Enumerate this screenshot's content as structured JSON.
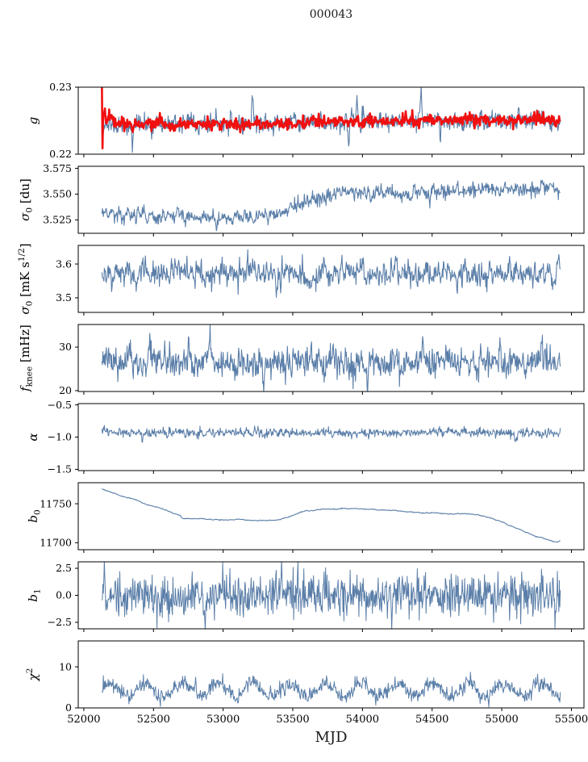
{
  "title": "000043",
  "x_axis": {
    "label": "MJD",
    "lim": [
      51960,
      55590
    ],
    "ticks": [
      {
        "v": 52000,
        "label": "52000"
      },
      {
        "v": 52500,
        "label": "52500"
      },
      {
        "v": 53000,
        "label": "53000"
      },
      {
        "v": 53500,
        "label": "53500"
      },
      {
        "v": 54000,
        "label": "54000"
      },
      {
        "v": 54500,
        "label": "54500"
      },
      {
        "v": 55000,
        "label": "55000"
      },
      {
        "v": 55500,
        "label": "55500"
      }
    ]
  },
  "data_xrange": [
    52130,
    55420
  ],
  "colors": {
    "line": "#5a7ea8",
    "overlay": "#f01010",
    "axis": "#000000",
    "text": "#000000",
    "background": "#ffffff"
  },
  "chart_data": [
    {
      "id": "g",
      "type": "line",
      "ylabel": [
        {
          "t": "g",
          "it": true
        }
      ],
      "ylim": [
        0.22,
        0.23
      ],
      "yticks": [
        {
          "v": 0.23,
          "label": "0.23"
        },
        {
          "v": 0.22,
          "label": "0.22"
        }
      ],
      "series": [
        {
          "name": "gain-raw",
          "color": "line",
          "lw": 1.1,
          "n": 950,
          "seed": 11,
          "ar": 0.35,
          "noise": 0.00058,
          "baseline": [
            [
              52130,
              0.2247
            ],
            [
              52200,
              0.2243
            ],
            [
              52500,
              0.2244
            ],
            [
              53000,
              0.2245
            ],
            [
              53500,
              0.2246
            ],
            [
              54000,
              0.2248
            ],
            [
              54300,
              0.2249
            ],
            [
              54700,
              0.2251
            ],
            [
              55000,
              0.2251
            ],
            [
              55250,
              0.2253
            ],
            [
              55420,
              0.2246
            ]
          ],
          "spikes": [
            {
              "x": 52350,
              "dy": -0.0028
            },
            {
              "x": 53210,
              "dy": 0.0046
            },
            {
              "x": 53900,
              "dy": -0.003
            },
            {
              "x": 53960,
              "dy": 0.0042
            },
            {
              "x": 54420,
              "dy": 0.0036
            },
            {
              "x": 54560,
              "dy": -0.0026
            },
            {
              "x": 55120,
              "dy": 0.0022
            }
          ]
        },
        {
          "name": "gain-smooth",
          "color": "overlay",
          "lw": 2.6,
          "n": 760,
          "seed": 22,
          "ar": 0.2,
          "noise": 0.0004,
          "baseline": [
            [
              52130,
              0.2297
            ],
            [
              52134,
              0.2199
            ],
            [
              52139,
              0.2262
            ],
            [
              52170,
              0.2254
            ],
            [
              52250,
              0.2247
            ],
            [
              52700,
              0.2244
            ],
            [
              53300,
              0.2245
            ],
            [
              53700,
              0.2248
            ],
            [
              54000,
              0.2249
            ],
            [
              54400,
              0.225
            ],
            [
              54700,
              0.2252
            ],
            [
              55000,
              0.2251
            ],
            [
              55250,
              0.2253
            ],
            [
              55420,
              0.2247
            ]
          ],
          "spikes": []
        }
      ]
    },
    {
      "id": "sigma0-du",
      "type": "line",
      "ylabel": [
        {
          "t": "σ",
          "it": true
        },
        {
          "t": "0",
          "sub": true
        },
        {
          "t": " [du]"
        }
      ],
      "ylim": [
        3.512,
        3.577
      ],
      "yticks": [
        {
          "v": 3.575,
          "label": "3.575"
        },
        {
          "v": 3.55,
          "label": "3.550"
        },
        {
          "v": 3.525,
          "label": "3.525"
        }
      ],
      "series": [
        {
          "name": "sigma0-du",
          "color": "line",
          "lw": 1.1,
          "n": 950,
          "seed": 33,
          "ar": 0.4,
          "noise": 0.0032,
          "baseline": [
            [
              52130,
              3.533
            ],
            [
              52250,
              3.53
            ],
            [
              52600,
              3.5285
            ],
            [
              53000,
              3.527
            ],
            [
              53250,
              3.528
            ],
            [
              53400,
              3.531
            ],
            [
              53550,
              3.539
            ],
            [
              53700,
              3.547
            ],
            [
              53850,
              3.551
            ],
            [
              54050,
              3.552
            ],
            [
              54250,
              3.55
            ],
            [
              54450,
              3.553
            ],
            [
              54650,
              3.552
            ],
            [
              54850,
              3.555
            ],
            [
              55050,
              3.553
            ],
            [
              55200,
              3.552
            ],
            [
              55330,
              3.559
            ],
            [
              55420,
              3.551
            ]
          ],
          "spikes": [
            {
              "x": 52950,
              "dy": -0.008
            },
            {
              "x": 53320,
              "dy": -0.009
            },
            {
              "x": 54060,
              "dy": -0.009
            },
            {
              "x": 54480,
              "dy": -0.008
            },
            {
              "x": 55290,
              "dy": 0.007
            }
          ]
        }
      ]
    },
    {
      "id": "sigma0-mks",
      "type": "line",
      "ylabel": [
        {
          "t": "σ",
          "it": true
        },
        {
          "t": "0",
          "sub": true
        },
        {
          "t": " [mK s"
        },
        {
          "t": "1/2",
          "sup": true
        },
        {
          "t": "]"
        }
      ],
      "ylim": [
        3.457,
        3.655
      ],
      "yticks": [
        {
          "v": 3.6,
          "label": "3.6"
        },
        {
          "v": 3.5,
          "label": "3.5"
        }
      ],
      "series": [
        {
          "name": "sigma0-mks",
          "color": "line",
          "lw": 1.1,
          "n": 950,
          "seed": 44,
          "ar": 0.5,
          "noise": 0.017,
          "baseline": [
            [
              52130,
              3.566
            ],
            [
              52600,
              3.5715
            ],
            [
              53000,
              3.569
            ],
            [
              53600,
              3.57
            ],
            [
              54100,
              3.5705
            ],
            [
              54600,
              3.5695
            ],
            [
              55100,
              3.5715
            ],
            [
              55420,
              3.565
            ]
          ],
          "spikes": [
            {
              "x": 52330,
              "dy": 0.035
            },
            {
              "x": 53380,
              "dy": -0.06
            },
            {
              "x": 53850,
              "dy": 0.062
            },
            {
              "x": 54680,
              "dy": -0.05
            },
            {
              "x": 55060,
              "dy": 0.04
            }
          ]
        }
      ]
    },
    {
      "id": "fknee",
      "type": "line",
      "ylabel": [
        {
          "t": "f",
          "it": true
        },
        {
          "t": "knee",
          "sub": true
        },
        {
          "t": " [mHz]"
        }
      ],
      "ylim": [
        19.8,
        35.2
      ],
      "yticks": [
        {
          "v": 30,
          "label": "30"
        },
        {
          "v": 20,
          "label": "20"
        }
      ],
      "series": [
        {
          "name": "fknee",
          "color": "line",
          "lw": 1.1,
          "n": 950,
          "seed": 55,
          "ar": 0.35,
          "noise": 1.55,
          "baseline": [
            [
              52130,
              26.2
            ],
            [
              52600,
              26.9
            ],
            [
              53100,
              26.3
            ],
            [
              53600,
              26.4
            ],
            [
              54100,
              25.9
            ],
            [
              54600,
              26.7
            ],
            [
              55100,
              26.6
            ],
            [
              55420,
              26.9
            ]
          ],
          "spikes": [
            {
              "x": 52470,
              "dy": 4.2
            },
            {
              "x": 52905,
              "dy": 7.5
            },
            {
              "x": 53290,
              "dy": -4.3
            },
            {
              "x": 53630,
              "dy": 4.0
            },
            {
              "x": 54035,
              "dy": -4.6
            },
            {
              "x": 54430,
              "dy": 4.0
            },
            {
              "x": 54985,
              "dy": 5.0
            },
            {
              "x": 55285,
              "dy": 4.4
            }
          ]
        }
      ]
    },
    {
      "id": "alpha",
      "type": "line",
      "ylabel": [
        {
          "t": "α",
          "it": true
        }
      ],
      "ylim": [
        -1.52,
        -0.48
      ],
      "yticks": [
        {
          "v": -0.5,
          "label": "−0.5"
        },
        {
          "v": -1.0,
          "label": "−1.0"
        },
        {
          "v": -1.5,
          "label": "−1.5"
        }
      ],
      "series": [
        {
          "name": "alpha",
          "color": "line",
          "lw": 1.0,
          "n": 950,
          "seed": 66,
          "ar": 0.35,
          "noise": 0.03,
          "baseline": [
            [
              52130,
              -0.928
            ],
            [
              55420,
              -0.932
            ]
          ],
          "spikes": [
            {
              "x": 52420,
              "dy": -0.1
            },
            {
              "x": 53250,
              "dy": 0.08
            },
            {
              "x": 53790,
              "dy": -0.09
            },
            {
              "x": 54620,
              "dy": 0.08
            },
            {
              "x": 55100,
              "dy": -0.08
            }
          ]
        }
      ]
    },
    {
      "id": "b0",
      "type": "line",
      "ylabel": [
        {
          "t": "b",
          "it": true
        },
        {
          "t": "0",
          "sub": true
        }
      ],
      "ylim": [
        11691,
        11777
      ],
      "yticks": [
        {
          "v": 11750,
          "label": "11750"
        },
        {
          "v": 11700,
          "label": "11700"
        }
      ],
      "series": [
        {
          "name": "b0",
          "color": "line",
          "lw": 1.1,
          "n": 850,
          "seed": 77,
          "ar": 0.85,
          "noise": 0.35,
          "baseline": [
            [
              52130,
              11769
            ],
            [
              52160,
              11766.5
            ],
            [
              52300,
              11759
            ],
            [
              52480,
              11748
            ],
            [
              52650,
              11737.5
            ],
            [
              52695,
              11734.5
            ],
            [
              52705,
              11731
            ],
            [
              52900,
              11730
            ],
            [
              53100,
              11729.5
            ],
            [
              53270,
              11728
            ],
            [
              53400,
              11729.5
            ],
            [
              53450,
              11732
            ],
            [
              53560,
              11739.5
            ],
            [
              53700,
              11742.5
            ],
            [
              53870,
              11744
            ],
            [
              54050,
              11743
            ],
            [
              54250,
              11741
            ],
            [
              54420,
              11738.5
            ],
            [
              54600,
              11737.5
            ],
            [
              54780,
              11736.5
            ],
            [
              54860,
              11734.5
            ],
            [
              54950,
              11730
            ],
            [
              55060,
              11722
            ],
            [
              55180,
              11713
            ],
            [
              55280,
              11706.5
            ],
            [
              55360,
              11702
            ],
            [
              55400,
              11700.5
            ],
            [
              55420,
              11702.5
            ]
          ],
          "spikes": []
        }
      ]
    },
    {
      "id": "b1",
      "type": "line",
      "ylabel": [
        {
          "t": "b",
          "it": true
        },
        {
          "t": "1",
          "sub": true
        }
      ],
      "ylim": [
        -3.1,
        3.1
      ],
      "yticks": [
        {
          "v": 2.5,
          "label": "2.5"
        },
        {
          "v": 0.0,
          "label": "0.0"
        },
        {
          "v": -2.5,
          "label": "−2.5"
        }
      ],
      "series": [
        {
          "name": "b1",
          "color": "line",
          "lw": 1.0,
          "n": 950,
          "seed": 88,
          "ar": 0.15,
          "noise": 0.85,
          "baseline": [
            [
              52130,
              0
            ],
            [
              55420,
              0
            ]
          ],
          "spikes": [
            {
              "x": 52150,
              "dy": 2.3
            },
            {
              "x": 52165,
              "dy": -2.7
            },
            {
              "x": 52870,
              "dy": -3.3
            },
            {
              "x": 53420,
              "dy": 2.5
            },
            {
              "x": 54210,
              "dy": -2.3
            },
            {
              "x": 55290,
              "dy": 3.1
            },
            {
              "x": 55385,
              "dy": -2.9
            }
          ]
        }
      ]
    },
    {
      "id": "chi2",
      "type": "line",
      "ylabel": [
        {
          "t": "χ",
          "it": true
        },
        {
          "t": "2",
          "sup": true
        }
      ],
      "ylim": [
        0,
        16.3
      ],
      "yticks": [
        {
          "v": 10,
          "label": "10"
        },
        {
          "v": 0,
          "label": "0"
        }
      ],
      "series": [
        {
          "name": "chi2",
          "color": "line",
          "lw": 1.0,
          "n": 950,
          "seed": 99,
          "ar": 0.3,
          "noise": 0.85,
          "clampMin": 0.25,
          "periodic": {
            "period": 257,
            "amplitude": 1.75,
            "phase": 0.0
          },
          "baseline": [
            [
              52130,
              4.3
            ],
            [
              55420,
              4.4
            ]
          ],
          "spikes": [
            {
              "x": 52800,
              "dy": 3.6
            },
            {
              "x": 53120,
              "dy": 2.0
            },
            {
              "x": 55350,
              "dy": 2.3
            }
          ]
        }
      ]
    }
  ]
}
